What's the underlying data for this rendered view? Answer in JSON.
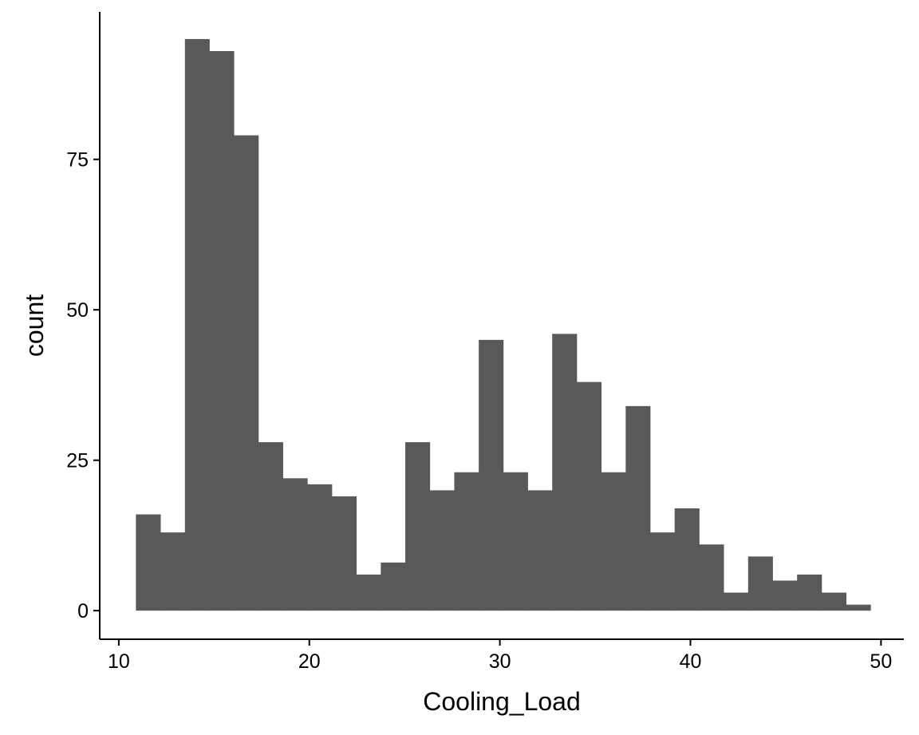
{
  "chart_data": {
    "type": "bar",
    "xlabel": "Cooling_Load",
    "ylabel": "count",
    "xlim": [
      9.0,
      51.2
    ],
    "ylim": [
      -4.75,
      99.5
    ],
    "xticks": [
      10,
      20,
      30,
      40,
      50
    ],
    "yticks": [
      0,
      25,
      50,
      75
    ],
    "bar_color": "#595959",
    "bin_start": 10.9,
    "bin_width": 1.2851,
    "values": [
      16,
      13,
      95,
      93,
      79,
      28,
      22,
      21,
      19,
      6,
      8,
      28,
      20,
      23,
      45,
      23,
      20,
      46,
      38,
      23,
      34,
      13,
      17,
      11,
      3,
      9,
      5,
      6,
      3,
      1
    ],
    "grid": false,
    "legend": "none"
  }
}
